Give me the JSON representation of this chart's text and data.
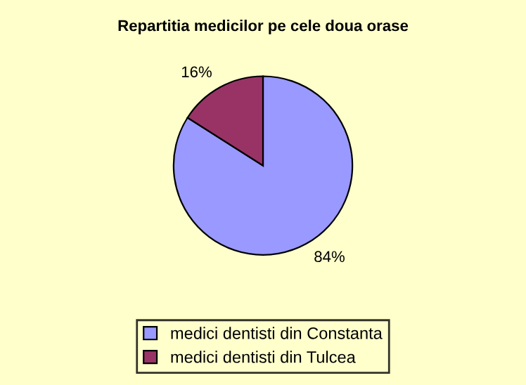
{
  "chart_data": {
    "type": "pie",
    "title": "Repartitia medicilor pe cele doua orase",
    "categories": [
      "medici dentisti din Constanta",
      "medici dentisti din Tulcea"
    ],
    "values": [
      84,
      16
    ],
    "colors": [
      "#9999ff",
      "#993366"
    ],
    "value_labels": [
      "84%",
      "16%"
    ],
    "legend": "bottom"
  }
}
